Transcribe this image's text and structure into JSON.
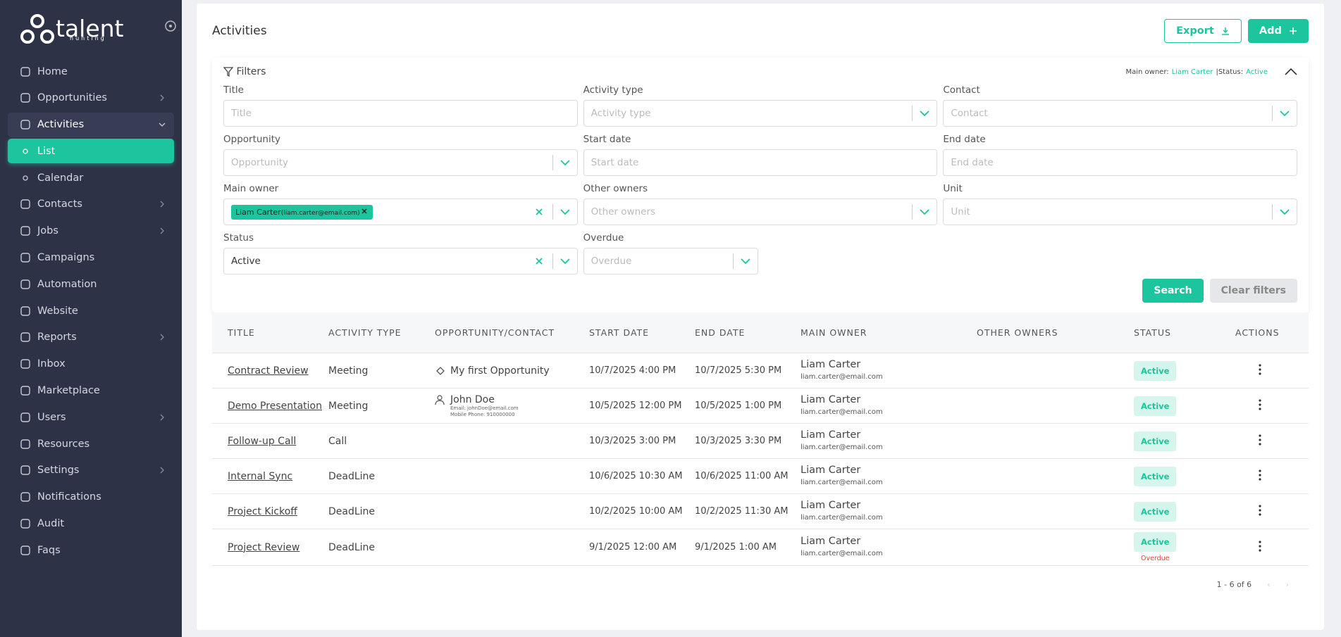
{
  "sidebar": {
    "brand": "talent",
    "tagline": "hunting",
    "items": [
      {
        "label": "Home"
      },
      {
        "label": "Opportunities",
        "submenu": true
      },
      {
        "label": "Activities",
        "submenu": true,
        "expanded": true
      },
      {
        "label": "List",
        "child": true,
        "selected": true
      },
      {
        "label": "Calendar",
        "child": true
      },
      {
        "label": "Contacts",
        "submenu": true
      },
      {
        "label": "Jobs",
        "submenu": true
      },
      {
        "label": "Campaigns"
      },
      {
        "label": "Automation"
      },
      {
        "label": "Website"
      },
      {
        "label": "Reports",
        "submenu": true
      },
      {
        "label": "Inbox"
      },
      {
        "label": "Marketplace"
      },
      {
        "label": "Users",
        "submenu": true
      },
      {
        "label": "Resources"
      },
      {
        "label": "Settings",
        "submenu": true
      },
      {
        "label": "Notifications"
      },
      {
        "label": "Audit"
      },
      {
        "label": "Faqs"
      }
    ]
  },
  "page": {
    "title": "Activities",
    "export": "Export",
    "add": "Add"
  },
  "filters": {
    "label": "Filters",
    "summary": [
      {
        "key": "Main owner:",
        "value": "Liam Carter"
      },
      {
        "key": "Status:",
        "value": "Active"
      }
    ],
    "fields": [
      {
        "label": "Title",
        "placeholder": "Title"
      },
      {
        "label": "Activity type",
        "placeholder": "Activity type",
        "dropdown": true
      },
      {
        "label": "Contact",
        "placeholder": "Contact",
        "dropdown": true
      },
      {
        "label": "Opportunity",
        "placeholder": "Opportunity",
        "dropdown": true
      },
      {
        "label": "Start date",
        "placeholder": "Start date"
      },
      {
        "label": "End date",
        "placeholder": "End date"
      },
      {
        "label": "Main owner",
        "dropdown": true,
        "clearable": true,
        "chip": {
          "name": "Liam Carter",
          "email": "(liam.carter@email.com)"
        }
      },
      {
        "label": "Other owners",
        "placeholder": "Other owners",
        "dropdown": true
      },
      {
        "label": "Unit",
        "placeholder": "Unit",
        "dropdown": true
      },
      {
        "label": "Status",
        "value": "Active",
        "dropdown": true,
        "clearable": true
      },
      {
        "label": "Overdue",
        "placeholder": "Overdue",
        "dropdown": true
      }
    ],
    "search": "Search",
    "clear": "Clear filters"
  },
  "table": {
    "columns": [
      "TITLE",
      "ACTIVITY TYPE",
      "OPPORTUNITY/CONTACT",
      "START DATE",
      "END DATE",
      "MAIN OWNER",
      "OTHER OWNERS",
      "STATUS",
      "ACTIONS"
    ],
    "rows": [
      {
        "title": "Contract Review",
        "type": "Meeting",
        "link": {
          "icon": "opportunity",
          "name": "My first Opportunity"
        },
        "start": "10/7/2025 4:00 PM",
        "end": "10/7/2025 5:30 PM",
        "owner": "Liam Carter",
        "owner_email": "liam.carter@email.com",
        "status": "Active"
      },
      {
        "title": "Demo Presentation",
        "type": "Meeting",
        "link": {
          "icon": "contact",
          "name": "John Doe",
          "email": "Email: johnDoe@email.com",
          "phone": "Mobile Phone: 910000000"
        },
        "start": "10/5/2025 12:00 PM",
        "end": "10/5/2025 1:00 PM",
        "owner": "Liam Carter",
        "owner_email": "liam.carter@email.com",
        "status": "Active"
      },
      {
        "title": "Follow-up Call",
        "type": "Call",
        "start": "10/3/2025 3:00 PM",
        "end": "10/3/2025 3:30 PM",
        "owner": "Liam Carter",
        "owner_email": "liam.carter@email.com",
        "status": "Active"
      },
      {
        "title": "Internal Sync",
        "type": "DeadLine",
        "start": "10/6/2025 10:30 AM",
        "end": "10/6/2025 11:00 AM",
        "owner": "Liam Carter",
        "owner_email": "liam.carter@email.com",
        "status": "Active"
      },
      {
        "title": "Project Kickoff",
        "type": "DeadLine",
        "start": "10/2/2025 10:00 AM",
        "end": "10/2/2025 11:30 AM",
        "owner": "Liam Carter",
        "owner_email": "liam.carter@email.com",
        "status": "Active"
      },
      {
        "title": "Project Review",
        "type": "DeadLine",
        "start": "9/1/2025 12:00 AM",
        "end": "9/1/2025 1:00 AM",
        "owner": "Liam Carter",
        "owner_email": "liam.carter@email.com",
        "status": "Active",
        "overdue": "Overdue"
      }
    ]
  },
  "pagination": {
    "range": "1 - 6 of 6"
  }
}
